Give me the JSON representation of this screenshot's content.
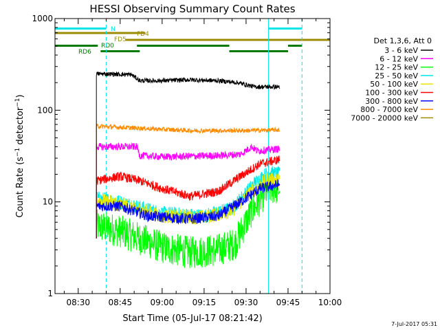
{
  "chart_data": {
    "type": "line",
    "title": "HESSI Observing Summary Count Rates",
    "xlabel": "Start Time (05-Jul-17 08:21:42)",
    "ylabel": "Count Rate (s⁻¹ detector⁻¹)",
    "ylabel_parts": [
      "Count Rate (s",
      "−1",
      " detector",
      "−1",
      ")"
    ],
    "x_scale": "time",
    "y_scale": "log",
    "xlim": [
      "08:21:42",
      "10:00:00"
    ],
    "ylim": [
      1,
      1000
    ],
    "x_ticks": [
      "08:30",
      "08:45",
      "09:00",
      "09:15",
      "09:30",
      "09:45",
      "10:00"
    ],
    "y_ticks": [
      {
        "value": 1,
        "label": "1"
      },
      {
        "value": 10,
        "label": "10"
      },
      {
        "value": 100,
        "label": "100"
      },
      {
        "value": 1000,
        "label": "1000"
      }
    ],
    "grid": false,
    "legend_position": "right",
    "legend_header": "Det 1,3,6, Att 0",
    "footer_date": "7-Jul-2017 05:31",
    "series": [
      {
        "name": "3 - 6 keV",
        "color": "#000000",
        "noise": 0.025,
        "points": [
          [
            "08:36:30",
            250
          ],
          [
            "08:49",
            245
          ],
          [
            "08:52",
            210
          ],
          [
            "09:00",
            210
          ],
          [
            "09:10",
            215
          ],
          [
            "09:20",
            210
          ],
          [
            "09:27",
            200
          ],
          [
            "09:33",
            180
          ],
          [
            "09:40",
            180
          ],
          [
            "09:42",
            180
          ]
        ]
      },
      {
        "name": "6 - 12 keV",
        "color": "#ff00ff",
        "noise": 0.04,
        "points": [
          [
            "08:36:30",
            40
          ],
          [
            "08:51",
            40
          ],
          [
            "08:52",
            32
          ],
          [
            "09:00",
            31
          ],
          [
            "09:20",
            32
          ],
          [
            "09:28",
            33
          ],
          [
            "09:32",
            40
          ],
          [
            "09:34",
            36
          ],
          [
            "09:42",
            38
          ]
        ]
      },
      {
        "name": "12 - 25 keV",
        "color": "#00ff00",
        "noise": 0.18,
        "points": [
          [
            "08:36:30",
            5.5
          ],
          [
            "08:45",
            4.8
          ],
          [
            "09:00",
            3.2
          ],
          [
            "09:10",
            2.8
          ],
          [
            "09:20",
            3
          ],
          [
            "09:26",
            3.5
          ],
          [
            "09:32",
            8
          ],
          [
            "09:38",
            14
          ],
          [
            "09:42",
            14
          ]
        ]
      },
      {
        "name": "25 - 50 keV",
        "color": "#00e6e6",
        "noise": 0.08,
        "points": [
          [
            "08:36:30",
            11
          ],
          [
            "08:45",
            10
          ],
          [
            "09:00",
            7.5
          ],
          [
            "09:15",
            7
          ],
          [
            "09:25",
            8.5
          ],
          [
            "09:33",
            16
          ],
          [
            "09:38",
            21
          ],
          [
            "09:42",
            20
          ]
        ]
      },
      {
        "name": "50 - 100 keV",
        "color": "#e6e600",
        "noise": 0.08,
        "points": [
          [
            "08:36:30",
            10.5
          ],
          [
            "08:45",
            9.5
          ],
          [
            "09:00",
            7
          ],
          [
            "09:15",
            6.8
          ],
          [
            "09:25",
            8
          ],
          [
            "09:33",
            14
          ],
          [
            "09:38",
            18
          ],
          [
            "09:42",
            17
          ]
        ]
      },
      {
        "name": "100 - 300 keV",
        "color": "#ff0000",
        "noise": 0.05,
        "points": [
          [
            "08:36:30",
            17
          ],
          [
            "08:45",
            19
          ],
          [
            "08:52",
            17
          ],
          [
            "09:00",
            14
          ],
          [
            "09:10",
            11.5
          ],
          [
            "09:20",
            13
          ],
          [
            "09:28",
            19
          ],
          [
            "09:35",
            26
          ],
          [
            "09:42",
            29
          ]
        ]
      },
      {
        "name": "300 - 800 keV",
        "color": "#0000ff",
        "noise": 0.06,
        "points": [
          [
            "08:36:30",
            9
          ],
          [
            "08:45",
            9
          ],
          [
            "08:55",
            7
          ],
          [
            "09:10",
            6.5
          ],
          [
            "09:20",
            7
          ],
          [
            "09:28",
            10
          ],
          [
            "09:35",
            14
          ],
          [
            "09:42",
            15.5
          ]
        ]
      },
      {
        "name": "800 - 7000 keV",
        "color": "#ff8c00",
        "noise": 0.025,
        "points": [
          [
            "08:36:30",
            67
          ],
          [
            "08:50",
            64
          ],
          [
            "09:10",
            60
          ],
          [
            "09:30",
            60
          ],
          [
            "09:42",
            61
          ]
        ]
      },
      {
        "name": "7000 - 20000 keV",
        "color": "#9b8b00",
        "noise": 0.0,
        "points": []
      }
    ],
    "orbit_bars": [
      {
        "label": "N",
        "color": "#00e6e6",
        "segments": [
          [
            "08:21:42",
            "08:40"
          ],
          [
            "09:38",
            "09:50"
          ]
        ]
      },
      {
        "label": "FD4",
        "color": "#9b8b00",
        "segments": [
          [
            "08:21:42",
            "08:54"
          ]
        ]
      },
      {
        "label": "FD5",
        "color": "#9b8b00",
        "segments": [
          [
            "08:47",
            "10:00"
          ]
        ]
      },
      {
        "label": "RD0",
        "color": "#007a00",
        "segments": [
          [
            "08:21:42",
            "08:37"
          ],
          [
            "08:51",
            "09:24"
          ],
          [
            "09:45",
            "09:50"
          ]
        ]
      },
      {
        "label": "RD6",
        "color": "#007a00",
        "segments": [
          [
            "08:38",
            "08:52"
          ],
          [
            "09:24",
            "09:45"
          ]
        ]
      }
    ],
    "vertical_lines": [
      {
        "time": "08:21:42",
        "style": "solid",
        "color": "#00e6e6"
      },
      {
        "time": "08:40",
        "style": "dashed",
        "color": "#00e6e6"
      },
      {
        "time": "09:38",
        "style": "solid",
        "color": "#00e6e6"
      },
      {
        "time": "09:50",
        "style": "dashed",
        "color": "#00e6e6"
      }
    ]
  }
}
